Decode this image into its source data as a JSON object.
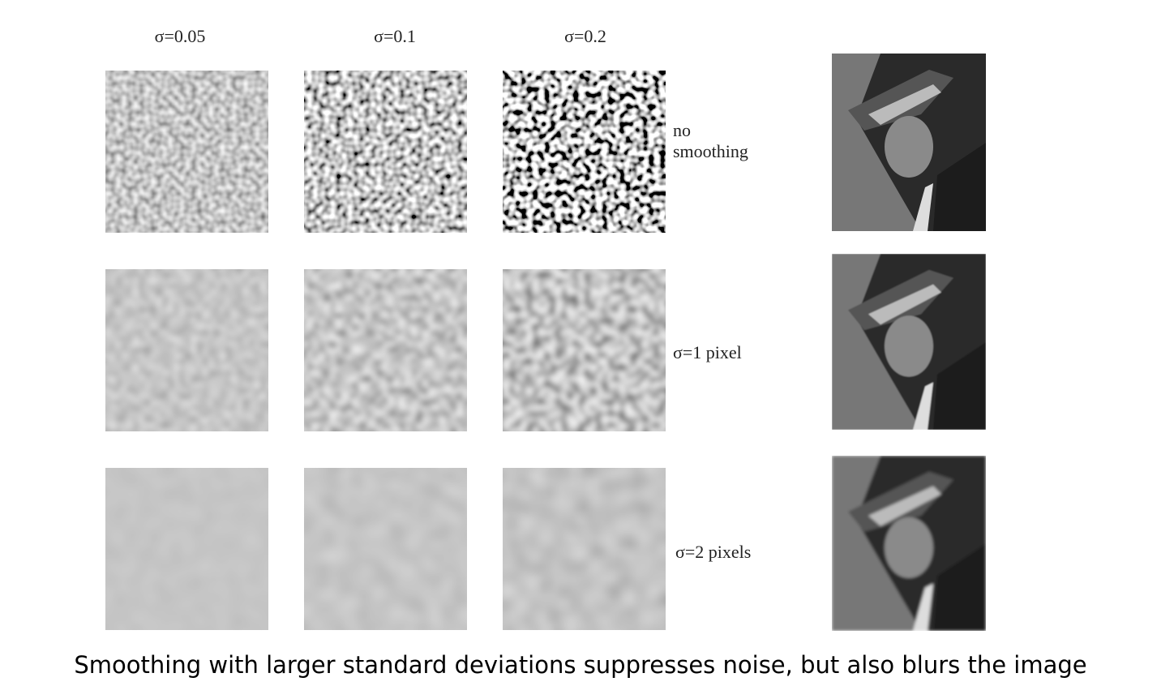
{
  "columns": [
    "σ=0.05",
    "σ=0.1",
    "σ=0.2"
  ],
  "rows": [
    {
      "label": [
        "no",
        "smoothing"
      ]
    },
    {
      "label": [
        "σ=1 pixel"
      ]
    },
    {
      "label": [
        "σ=2 pixels"
      ]
    }
  ],
  "caption": "Smoothing with larger standard deviations suppresses noise, but also blurs the image"
}
